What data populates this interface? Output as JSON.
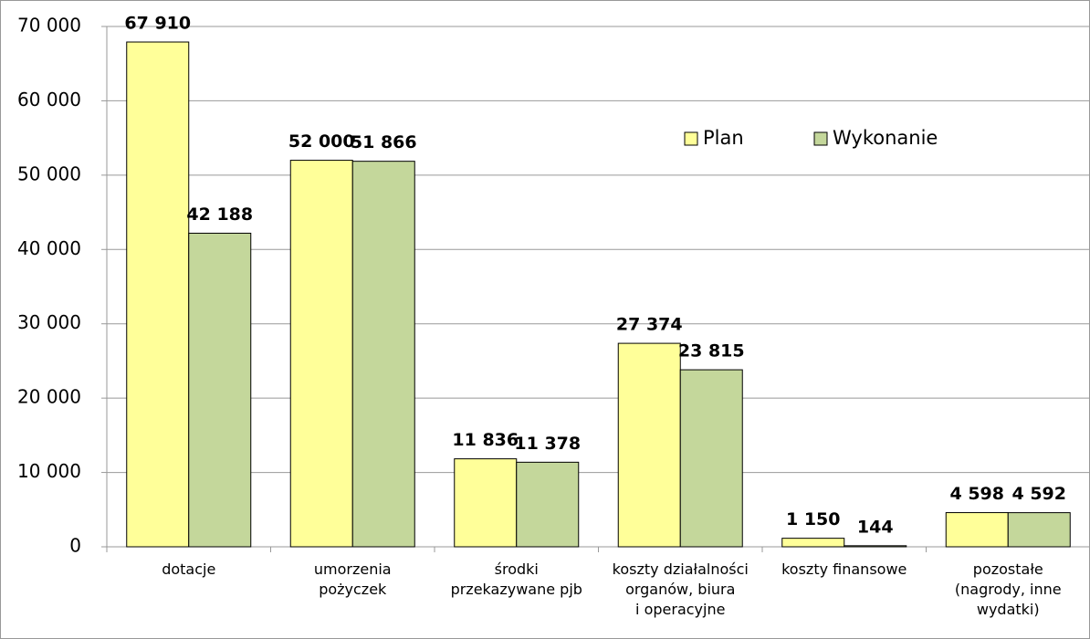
{
  "chart_data": {
    "type": "bar",
    "categories": [
      "dotacje",
      "umorzenia\npożyczek",
      "środki\nprzekazywane pjb",
      "koszty działalności\norganów, biura\ni operacyjne",
      "koszty finansowe",
      "pozostałe\n(nagrody, inne\nwydatki)"
    ],
    "series": [
      {
        "name": "Plan",
        "color": "#ffff99",
        "values": [
          67910,
          52000,
          11836,
          27374,
          1150,
          4598
        ],
        "value_labels": [
          "67 910",
          "52 000",
          "11 836",
          "27 374",
          "1 150",
          "4 598"
        ]
      },
      {
        "name": "Wykonanie",
        "color": "#c4d79b",
        "values": [
          42188,
          51866,
          11378,
          23815,
          144,
          4592
        ],
        "value_labels": [
          "42 188",
          "51 866",
          "11 378",
          "23 815",
          "144",
          "4 592"
        ]
      }
    ],
    "ylim": [
      0,
      70000
    ],
    "yticks": [
      0,
      {
        "value": 10000,
        "label": "10 000"
      },
      {
        "value": 20000,
        "label": "20 000"
      },
      {
        "value": 30000,
        "label": "30 000"
      },
      {
        "value": 40000,
        "label": "40 000"
      },
      {
        "value": 50000,
        "label": "50 000"
      },
      {
        "value": 60000,
        "label": "60 000"
      },
      {
        "value": 70000,
        "label": "70 000"
      }
    ],
    "grid": true
  }
}
